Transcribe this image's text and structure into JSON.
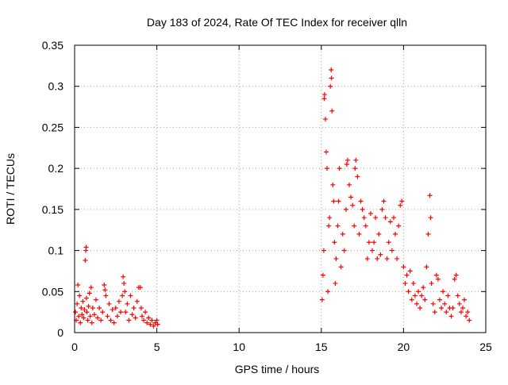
{
  "chart_data": {
    "type": "scatter",
    "title": "Day 183 of 2024, Rate Of TEC Index for receiver qlln",
    "xlabel": "GPS time / hours",
    "ylabel": "ROTI / TECUs",
    "xlim": [
      0,
      25
    ],
    "ylim": [
      0,
      0.35
    ],
    "x_ticks": [
      0,
      5,
      10,
      15,
      20,
      25
    ],
    "x_tick_labels": [
      "0",
      "5",
      "10",
      "15",
      "20",
      "25"
    ],
    "y_ticks": [
      0,
      0.05,
      0.1,
      0.15,
      0.2,
      0.25,
      0.3,
      0.35
    ],
    "y_tick_labels": [
      "0",
      "0.05",
      "0.1",
      "0.15",
      "0.2",
      "0.25",
      "0.3",
      "0.35"
    ],
    "grid": true,
    "marker": "+",
    "series": [
      {
        "name": "ROTI",
        "color": "#ff0000",
        "points": [
          [
            0.05,
            0.025
          ],
          [
            0.1,
            0.015
          ],
          [
            0.15,
            0.035
          ],
          [
            0.2,
            0.058
          ],
          [
            0.25,
            0.02
          ],
          [
            0.3,
            0.045
          ],
          [
            0.35,
            0.012
          ],
          [
            0.4,
            0.03
          ],
          [
            0.45,
            0.022
          ],
          [
            0.5,
            0.038
          ],
          [
            0.55,
            0.018
          ],
          [
            0.6,
            0.028
          ],
          [
            0.65,
            0.088
          ],
          [
            0.68,
            0.1
          ],
          [
            0.7,
            0.104
          ],
          [
            0.72,
            0.042
          ],
          [
            0.75,
            0.025
          ],
          [
            0.8,
            0.015
          ],
          [
            0.85,
            0.032
          ],
          [
            0.9,
            0.048
          ],
          [
            0.95,
            0.02
          ],
          [
            1.0,
            0.055
          ],
          [
            1.05,
            0.012
          ],
          [
            1.1,
            0.03
          ],
          [
            1.2,
            0.022
          ],
          [
            1.3,
            0.04
          ],
          [
            1.4,
            0.018
          ],
          [
            1.5,
            0.03
          ],
          [
            1.6,
            0.015
          ],
          [
            1.7,
            0.025
          ],
          [
            1.8,
            0.058
          ],
          [
            1.85,
            0.052
          ],
          [
            1.9,
            0.045
          ],
          [
            2.0,
            0.02
          ],
          [
            2.1,
            0.035
          ],
          [
            2.2,
            0.015
          ],
          [
            2.3,
            0.028
          ],
          [
            2.4,
            0.012
          ],
          [
            2.5,
            0.03
          ],
          [
            2.6,
            0.02
          ],
          [
            2.7,
            0.038
          ],
          [
            2.8,
            0.025
          ],
          [
            2.9,
            0.045
          ],
          [
            2.95,
            0.068
          ],
          [
            3.0,
            0.06
          ],
          [
            3.05,
            0.05
          ],
          [
            3.1,
            0.025
          ],
          [
            3.2,
            0.035
          ],
          [
            3.3,
            0.015
          ],
          [
            3.4,
            0.045
          ],
          [
            3.5,
            0.022
          ],
          [
            3.6,
            0.03
          ],
          [
            3.7,
            0.018
          ],
          [
            3.8,
            0.038
          ],
          [
            3.9,
            0.055
          ],
          [
            4.0,
            0.055
          ],
          [
            4.05,
            0.03
          ],
          [
            4.1,
            0.02
          ],
          [
            4.2,
            0.015
          ],
          [
            4.3,
            0.025
          ],
          [
            4.4,
            0.012
          ],
          [
            4.5,
            0.018
          ],
          [
            4.6,
            0.01
          ],
          [
            4.7,
            0.015
          ],
          [
            4.8,
            0.008
          ],
          [
            4.9,
            0.012
          ],
          [
            5.0,
            0.015
          ],
          [
            5.05,
            0.01
          ],
          [
            15.05,
            0.04
          ],
          [
            15.1,
            0.07
          ],
          [
            15.15,
            0.1
          ],
          [
            15.18,
            0.285
          ],
          [
            15.2,
            0.29
          ],
          [
            15.25,
            0.26
          ],
          [
            15.3,
            0.22
          ],
          [
            15.35,
            0.2
          ],
          [
            15.4,
            0.05
          ],
          [
            15.45,
            0.13
          ],
          [
            15.5,
            0.14
          ],
          [
            15.55,
            0.3
          ],
          [
            15.6,
            0.32
          ],
          [
            15.62,
            0.31
          ],
          [
            15.65,
            0.27
          ],
          [
            15.7,
            0.18
          ],
          [
            15.75,
            0.16
          ],
          [
            15.8,
            0.11
          ],
          [
            15.85,
            0.06
          ],
          [
            15.9,
            0.09
          ],
          [
            16.0,
            0.13
          ],
          [
            16.05,
            0.16
          ],
          [
            16.1,
            0.2
          ],
          [
            16.2,
            0.08
          ],
          [
            16.3,
            0.12
          ],
          [
            16.4,
            0.1
          ],
          [
            16.5,
            0.15
          ],
          [
            16.55,
            0.205
          ],
          [
            16.6,
            0.21
          ],
          [
            16.7,
            0.18
          ],
          [
            16.8,
            0.165
          ],
          [
            16.9,
            0.155
          ],
          [
            17.0,
            0.13
          ],
          [
            17.05,
            0.2
          ],
          [
            17.1,
            0.21
          ],
          [
            17.2,
            0.19
          ],
          [
            17.3,
            0.12
          ],
          [
            17.4,
            0.16
          ],
          [
            17.5,
            0.15
          ],
          [
            17.6,
            0.14
          ],
          [
            17.7,
            0.13
          ],
          [
            17.8,
            0.09
          ],
          [
            17.9,
            0.11
          ],
          [
            18.0,
            0.145
          ],
          [
            18.1,
            0.1
          ],
          [
            18.2,
            0.11
          ],
          [
            18.3,
            0.14
          ],
          [
            18.4,
            0.09
          ],
          [
            18.5,
            0.12
          ],
          [
            18.6,
            0.095
          ],
          [
            18.7,
            0.15
          ],
          [
            18.8,
            0.16
          ],
          [
            18.9,
            0.14
          ],
          [
            19.0,
            0.09
          ],
          [
            19.1,
            0.11
          ],
          [
            19.2,
            0.135
          ],
          [
            19.3,
            0.1
          ],
          [
            19.4,
            0.14
          ],
          [
            19.5,
            0.12
          ],
          [
            19.6,
            0.09
          ],
          [
            19.7,
            0.13
          ],
          [
            19.8,
            0.155
          ],
          [
            19.9,
            0.16
          ],
          [
            20.0,
            0.08
          ],
          [
            20.1,
            0.06
          ],
          [
            20.2,
            0.07
          ],
          [
            20.3,
            0.05
          ],
          [
            20.4,
            0.075
          ],
          [
            20.5,
            0.04
          ],
          [
            20.6,
            0.06
          ],
          [
            20.7,
            0.045
          ],
          [
            20.8,
            0.035
          ],
          [
            20.9,
            0.05
          ],
          [
            21.0,
            0.03
          ],
          [
            21.1,
            0.045
          ],
          [
            21.2,
            0.055
          ],
          [
            21.3,
            0.04
          ],
          [
            21.4,
            0.08
          ],
          [
            21.5,
            0.12
          ],
          [
            21.6,
            0.167
          ],
          [
            21.65,
            0.14
          ],
          [
            21.7,
            0.06
          ],
          [
            21.8,
            0.035
          ],
          [
            21.9,
            0.025
          ],
          [
            22.0,
            0.07
          ],
          [
            22.1,
            0.065
          ],
          [
            22.2,
            0.04
          ],
          [
            22.3,
            0.03
          ],
          [
            22.4,
            0.05
          ],
          [
            22.5,
            0.035
          ],
          [
            22.6,
            0.025
          ],
          [
            22.7,
            0.045
          ],
          [
            22.8,
            0.03
          ],
          [
            22.9,
            0.02
          ],
          [
            23.0,
            0.03
          ],
          [
            23.1,
            0.065
          ],
          [
            23.2,
            0.07
          ],
          [
            23.3,
            0.045
          ],
          [
            23.4,
            0.035
          ],
          [
            23.5,
            0.025
          ],
          [
            23.6,
            0.03
          ],
          [
            23.7,
            0.04
          ],
          [
            23.8,
            0.02
          ],
          [
            23.9,
            0.025
          ],
          [
            24.0,
            0.015
          ]
        ]
      }
    ]
  }
}
